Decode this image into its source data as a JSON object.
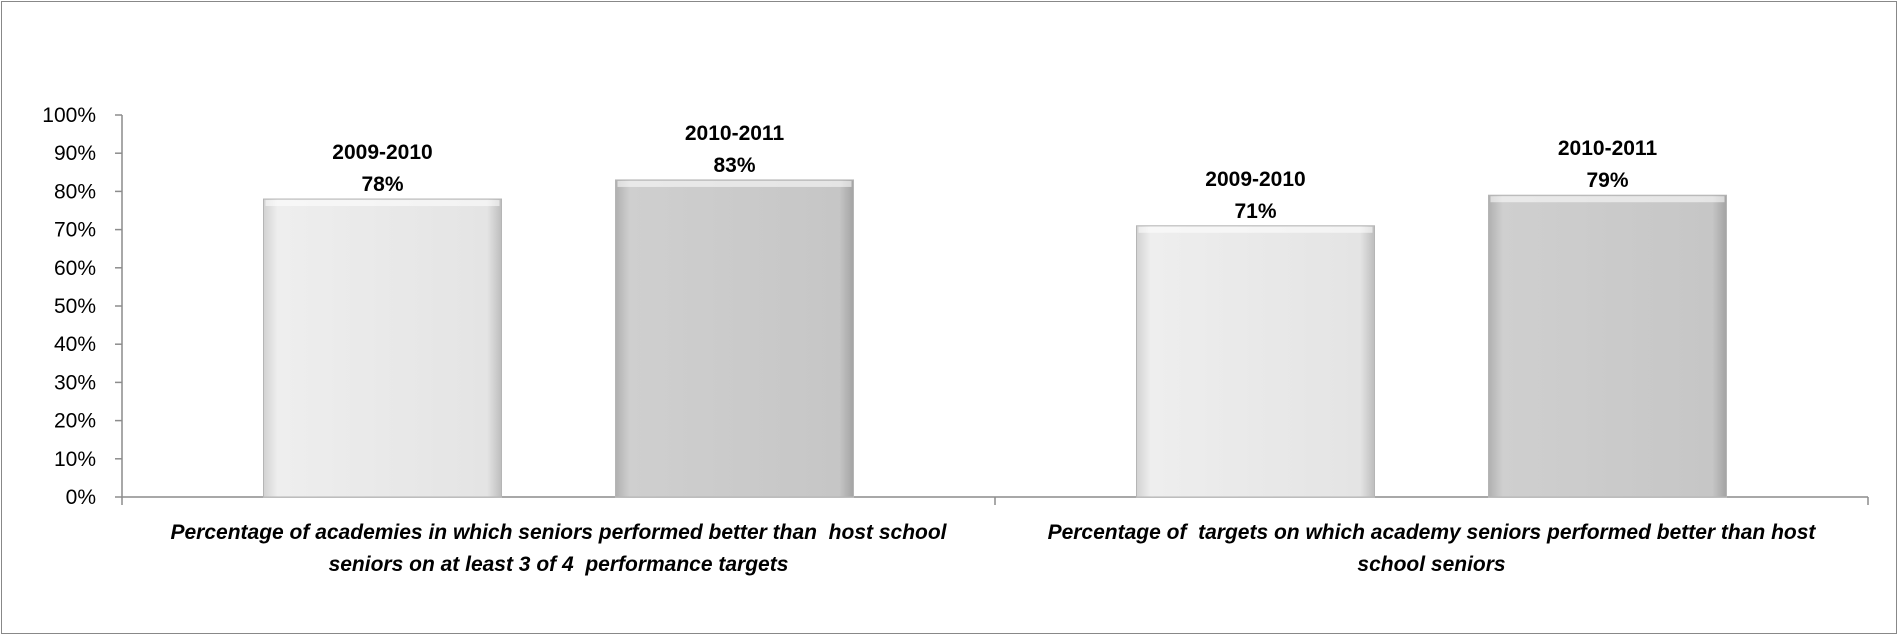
{
  "chart_data": {
    "type": "bar",
    "categories": [
      [
        "Percentage of academies in which seniors performed better than  host school",
        "seniors on at least 3 of 4  performance targets"
      ],
      [
        "Percentage of  targets on which academy seniors performed better than host",
        "school seniors"
      ]
    ],
    "series": [
      {
        "name": "2009-2010",
        "values": [
          78,
          71
        ],
        "labels": [
          "78%",
          "71%"
        ],
        "color": "#e6e6e6"
      },
      {
        "name": "2010-2011",
        "values": [
          83,
          79
        ],
        "labels": [
          "83%",
          "79%"
        ],
        "color": "#c9c9c9"
      }
    ],
    "ylim": [
      0,
      100
    ],
    "y_ticks": [
      "0%",
      "10%",
      "20%",
      "30%",
      "40%",
      "50%",
      "60%",
      "70%",
      "80%",
      "90%",
      "100%"
    ],
    "grid": false,
    "legend": "none"
  }
}
